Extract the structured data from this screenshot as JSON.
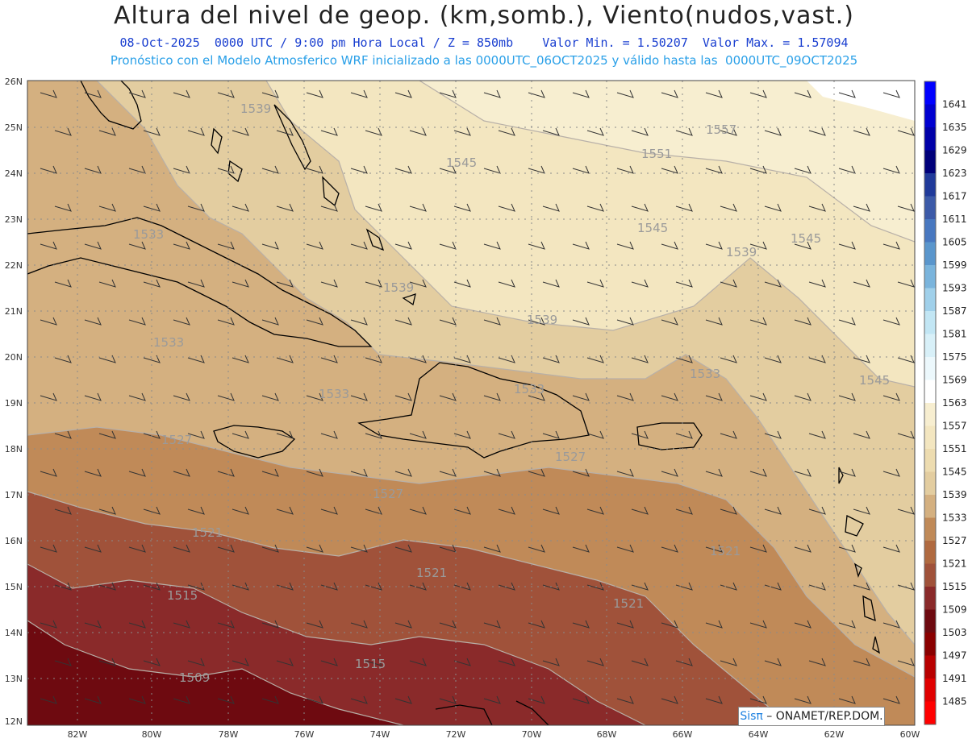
{
  "header": {
    "title": "Altura del nivel de geop. (km,somb.), Viento(nudos,vast.)",
    "subtitle_line1": "08-Oct-2025  0000 UTC / 9:00 pm Hora Local / Z = 850mb    Valor Min. = 1.50207  Valor Max. = 1.57094",
    "subtitle_line2": "Pronóstico con el Modelo Atmosferico WRF inicializado a las 0000UTC_06OCT2025 y válido hasta las  0000UTC_09OCT2025"
  },
  "axes": {
    "lat_labels": [
      "26N",
      "25N",
      "24N",
      "23N",
      "22N",
      "21N",
      "20N",
      "19N",
      "18N",
      "17N",
      "16N",
      "15N",
      "14N",
      "13N",
      "12N"
    ],
    "lon_labels": [
      "82W",
      "80W",
      "78W",
      "76W",
      "74W",
      "72W",
      "70W",
      "68W",
      "66W",
      "64W",
      "62W",
      "60W"
    ]
  },
  "colorbar": {
    "labels": [
      "1641",
      "1635",
      "1629",
      "1623",
      "1617",
      "1611",
      "1605",
      "1599",
      "1593",
      "1587",
      "1581",
      "1575",
      "1569",
      "1563",
      "1557",
      "1551",
      "1545",
      "1539",
      "1533",
      "1527",
      "1521",
      "1515",
      "1509",
      "1503",
      "1497",
      "1491",
      "1485"
    ],
    "colors": [
      "#0000ff",
      "#0000d0",
      "#0000a8",
      "#00007a",
      "#203a9a",
      "#3c5aa8",
      "#4878c0",
      "#5a96cc",
      "#7ab4dc",
      "#a0d0ea",
      "#c2e6f4",
      "#d8f0f8",
      "#ecf8fc",
      "#ffffff",
      "#f7eed0",
      "#f3e6c0",
      "#eddcb0",
      "#e3cda0",
      "#d4b080",
      "#c08a58",
      "#b06a40",
      "#a0523a",
      "#8a2a2a",
      "#6e0a10",
      "#8a0000",
      "#b80000",
      "#e00000",
      "#ff0000"
    ]
  },
  "contour_labels": [
    "1557",
    "1551",
    "1545",
    "1545",
    "1545",
    "1545",
    "1539",
    "1539",
    "1539",
    "1539",
    "1533",
    "1533",
    "1533",
    "1533",
    "1533",
    "1527",
    "1527",
    "1527",
    "1521",
    "1521",
    "1521",
    "1521",
    "1515",
    "1515",
    "1509"
  ],
  "credit": {
    "brand": "Sis",
    "pi": "π",
    "org": " – ONAMET/REP.DOM."
  }
}
